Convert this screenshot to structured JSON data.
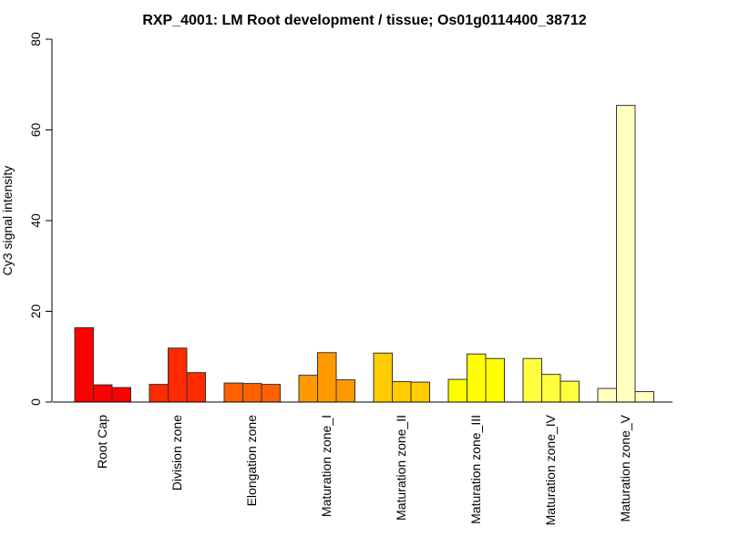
{
  "chart_data": {
    "type": "bar",
    "title": "RXP_4001: LM Root development / tissue; Os01g0114400_38712",
    "xlabel": "",
    "ylabel": "Cy3 signal intensity",
    "ylim": [
      0,
      80
    ],
    "yticks": [
      "0",
      "20",
      "40",
      "60",
      "80"
    ],
    "grid": false,
    "categories": [
      "Root Cap",
      "Division zone",
      "Elongation zone",
      "Maturation zone_I",
      "Maturation zone_II",
      "Maturation zone_III",
      "Maturation zone_IV",
      "Maturation zone_V"
    ],
    "colors": [
      "#ff0000",
      "#ff2a00",
      "#ff6000",
      "#ff9900",
      "#ffcc00",
      "#ffff00",
      "#ffff40",
      "#ffffc0"
    ],
    "replicates_per_category": 3,
    "values": [
      [
        16.4,
        3.8,
        3.2
      ],
      [
        3.9,
        11.9,
        6.5
      ],
      [
        4.2,
        4.1,
        3.9
      ],
      [
        5.9,
        10.9,
        4.9
      ],
      [
        10.8,
        4.5,
        4.4
      ],
      [
        5.0,
        10.6,
        9.6
      ],
      [
        9.6,
        6.1,
        4.6
      ],
      [
        3.0,
        65.4,
        2.3
      ]
    ]
  }
}
